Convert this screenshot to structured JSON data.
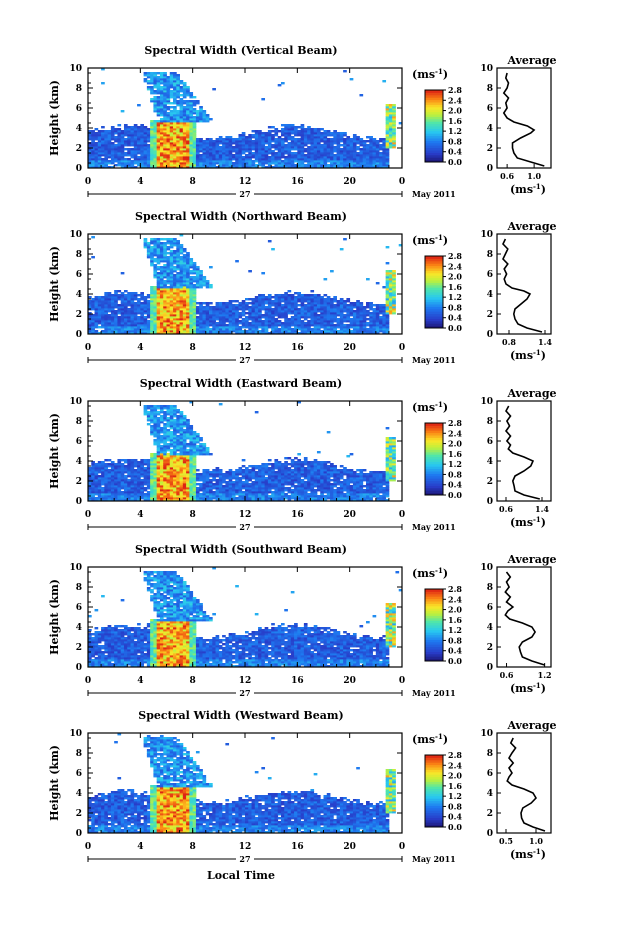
{
  "chart_data": [
    {
      "type": "heatmap",
      "title": "Spectral Width (Vertical Beam)",
      "ylabel": "Height (km)",
      "xlim": [
        0,
        24
      ],
      "ylim": [
        0,
        10
      ],
      "xticks": [
        "0",
        "4",
        "8",
        "12",
        "16",
        "20",
        "0"
      ],
      "yticks": [
        "0",
        "2",
        "4",
        "6",
        "8",
        "10"
      ],
      "date_label": "27",
      "month_label": "May 2011",
      "colorbar": {
        "unit": "(ms",
        "sup": "-1",
        "close": ")",
        "ticks": [
          "0.0",
          "0.4",
          "0.8",
          "1.2",
          "1.6",
          "2.0",
          "2.4",
          "2.8"
        ]
      },
      "average": {
        "title": "Average",
        "xticks": [
          "0.6",
          "1.0"
        ],
        "xlim": [
          0.45,
          1.25
        ],
        "xlabel": "(ms",
        "sup": "-1",
        "close": ")",
        "heights": [
          0.2,
          0.6,
          1.0,
          1.5,
          2.0,
          2.5,
          3.0,
          3.5,
          3.8,
          4.2,
          4.6,
          5.0,
          5.5,
          6.0,
          6.5,
          7.0,
          7.5,
          8.0,
          8.5,
          9.0,
          9.5
        ],
        "values": [
          1.15,
          0.95,
          0.75,
          0.7,
          0.68,
          0.68,
          0.8,
          0.95,
          1.0,
          0.9,
          0.7,
          0.6,
          0.55,
          0.6,
          0.58,
          0.62,
          0.55,
          0.6,
          0.62,
          0.58,
          0.6
        ]
      }
    },
    {
      "type": "heatmap",
      "title": "Spectral Width (Northward Beam)",
      "ylabel": "Height (km)",
      "xlim": [
        0,
        24
      ],
      "ylim": [
        0,
        10
      ],
      "xticks": [
        "0",
        "4",
        "8",
        "12",
        "16",
        "20",
        "0"
      ],
      "yticks": [
        "0",
        "2",
        "4",
        "6",
        "8",
        "10"
      ],
      "date_label": "27",
      "month_label": "May 2011",
      "colorbar": {
        "unit": "(ms",
        "sup": "-1",
        "close": ")",
        "ticks": [
          "0.0",
          "0.4",
          "0.8",
          "1.2",
          "1.6",
          "2.0",
          "2.4",
          "2.8"
        ]
      },
      "average": {
        "title": "Average",
        "xticks": [
          "0.8",
          "1.4"
        ],
        "xlim": [
          0.6,
          1.5
        ],
        "xlabel": "(ms",
        "sup": "-1",
        "close": ")",
        "heights": [
          0.2,
          0.6,
          1.0,
          1.5,
          2.0,
          2.5,
          3.0,
          3.5,
          4.0,
          4.3,
          4.6,
          5.0,
          5.5,
          6.0,
          6.5,
          7.0,
          7.5,
          8.0,
          8.5,
          9.0,
          9.5
        ],
        "values": [
          1.35,
          1.1,
          0.95,
          0.9,
          0.88,
          0.9,
          1.0,
          1.1,
          1.15,
          1.05,
          0.85,
          0.75,
          0.72,
          0.76,
          0.72,
          0.78,
          0.7,
          0.74,
          0.78,
          0.7,
          0.74
        ]
      }
    },
    {
      "type": "heatmap",
      "title": "Spectral Width (Eastward Beam)",
      "ylabel": "Height (km)",
      "xlim": [
        0,
        24
      ],
      "ylim": [
        0,
        10
      ],
      "xticks": [
        "0",
        "4",
        "8",
        "12",
        "16",
        "20",
        "0"
      ],
      "yticks": [
        "0",
        "2",
        "4",
        "6",
        "8",
        "10"
      ],
      "date_label": "27",
      "month_label": "May 2011",
      "colorbar": {
        "unit": "(ms",
        "sup": "-1",
        "close": ")",
        "ticks": [
          "0.0",
          "0.4",
          "0.8",
          "1.2",
          "1.6",
          "2.0",
          "2.4",
          "2.8"
        ]
      },
      "average": {
        "title": "Average",
        "xticks": [
          "0.6",
          "1.4"
        ],
        "xlim": [
          0.4,
          1.6
        ],
        "xlabel": "(ms",
        "sup": "-1",
        "close": ")",
        "heights": [
          0.2,
          0.6,
          1.0,
          1.5,
          2.0,
          2.5,
          3.0,
          3.5,
          4.0,
          4.4,
          4.8,
          5.2,
          5.6,
          6.0,
          6.5,
          7.0,
          7.5,
          8.0,
          8.5,
          9.0,
          9.5
        ],
        "values": [
          1.35,
          1.0,
          0.8,
          0.78,
          0.75,
          0.8,
          1.0,
          1.15,
          1.2,
          1.0,
          0.75,
          0.65,
          0.7,
          0.62,
          0.7,
          0.6,
          0.68,
          0.62,
          0.7,
          0.6,
          0.66
        ]
      }
    },
    {
      "type": "heatmap",
      "title": "Spectral Width (Southward Beam)",
      "ylabel": "Height (km)",
      "xlim": [
        0,
        24
      ],
      "ylim": [
        0,
        10
      ],
      "xticks": [
        "0",
        "4",
        "8",
        "12",
        "16",
        "20",
        "0"
      ],
      "yticks": [
        "0",
        "2",
        "4",
        "6",
        "8",
        "10"
      ],
      "date_label": "27",
      "month_label": "May 2011",
      "colorbar": {
        "unit": "(ms",
        "sup": "-1",
        "close": ")",
        "ticks": [
          "0.0",
          "0.4",
          "0.8",
          "1.2",
          "1.6",
          "2.0",
          "2.4",
          "2.8"
        ]
      },
      "average": {
        "title": "Average",
        "xticks": [
          "0.6",
          "1.2"
        ],
        "xlim": [
          0.45,
          1.3
        ],
        "xlabel": "(ms",
        "sup": "-1",
        "close": ")",
        "heights": [
          0.2,
          0.6,
          1.0,
          1.5,
          2.0,
          2.5,
          3.0,
          3.5,
          4.0,
          4.4,
          4.8,
          5.2,
          5.6,
          6.0,
          6.5,
          7.0,
          7.5,
          8.0,
          8.5,
          9.0,
          9.5
        ],
        "values": [
          1.2,
          1.0,
          0.85,
          0.82,
          0.8,
          0.85,
          1.0,
          1.05,
          1.0,
          0.85,
          0.65,
          0.58,
          0.62,
          0.7,
          0.6,
          0.66,
          0.58,
          0.64,
          0.6,
          0.66,
          0.6
        ]
      }
    },
    {
      "type": "heatmap",
      "title": "Spectral Width (Westward Beam)",
      "ylabel": "Height (km)",
      "xlim": [
        0,
        24
      ],
      "ylim": [
        0,
        10
      ],
      "xticks": [
        "0",
        "4",
        "8",
        "12",
        "16",
        "20",
        "0"
      ],
      "yticks": [
        "0",
        "2",
        "4",
        "6",
        "8",
        "10"
      ],
      "date_label": "27",
      "month_label": "May 2011",
      "xlabel": "Local Time",
      "colorbar": {
        "unit": "(ms",
        "sup": "-1",
        "close": ")",
        "ticks": [
          "0.0",
          "0.4",
          "0.8",
          "1.2",
          "1.6",
          "2.0",
          "2.4",
          "2.8"
        ]
      },
      "average": {
        "title": "Average",
        "xticks": [
          "0.5",
          "1.0"
        ],
        "xlim": [
          0.35,
          1.25
        ],
        "xlabel": "(ms",
        "sup": "-1",
        "close": ")",
        "heights": [
          0.2,
          0.6,
          1.0,
          1.5,
          2.0,
          2.5,
          3.0,
          3.5,
          4.0,
          4.4,
          4.8,
          5.2,
          5.6,
          6.0,
          6.5,
          7.0,
          7.5,
          8.0,
          8.5,
          9.0,
          9.5
        ],
        "values": [
          1.15,
          0.95,
          0.8,
          0.76,
          0.75,
          0.78,
          0.92,
          1.0,
          0.95,
          0.8,
          0.6,
          0.52,
          0.55,
          0.6,
          0.55,
          0.62,
          0.55,
          0.6,
          0.66,
          0.58,
          0.62
        ]
      }
    }
  ]
}
